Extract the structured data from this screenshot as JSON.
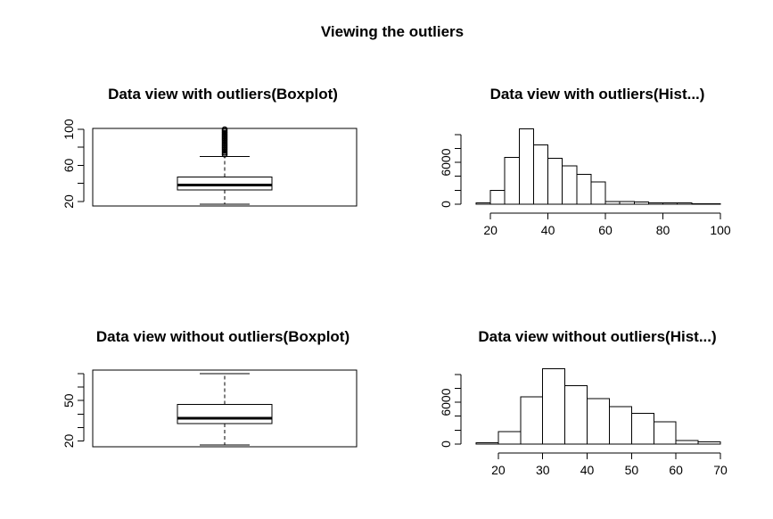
{
  "figure": {
    "title": "Viewing the outliers"
  },
  "chart_data": [
    {
      "type": "boxplot",
      "title": "Data view with outliers(Boxplot)",
      "orientation": "horizontal",
      "yaxis": {
        "range": [
          17,
          100
        ],
        "ticks": [
          20,
          60,
          100
        ],
        "minor_ticks": [
          40,
          80
        ]
      },
      "stats": {
        "whisker_low": 17,
        "q1": 33,
        "median": 38,
        "q3": 47,
        "whisker_high": 70
      },
      "outliers": [
        72,
        74,
        76,
        78,
        80,
        82,
        84,
        86,
        88,
        90,
        92,
        94,
        96,
        98,
        100
      ]
    },
    {
      "type": "histogram",
      "title": "Data view with outliers(Hist...)",
      "xaxis": {
        "range": [
          15,
          100
        ],
        "ticks": [
          20,
          40,
          60,
          80,
          100
        ]
      },
      "yaxis": {
        "range": [
          0,
          11000
        ],
        "ticks": [
          0,
          6000
        ],
        "minor_ticks": [
          2000,
          4000,
          8000,
          10000
        ]
      },
      "bins": [
        {
          "x0": 15,
          "x1": 20,
          "count": 200
        },
        {
          "x0": 20,
          "x1": 25,
          "count": 2000
        },
        {
          "x0": 25,
          "x1": 30,
          "count": 6700
        },
        {
          "x0": 30,
          "x1": 35,
          "count": 10800
        },
        {
          "x0": 35,
          "x1": 40,
          "count": 8500
        },
        {
          "x0": 40,
          "x1": 45,
          "count": 6600
        },
        {
          "x0": 45,
          "x1": 50,
          "count": 5500
        },
        {
          "x0": 50,
          "x1": 55,
          "count": 4300
        },
        {
          "x0": 55,
          "x1": 60,
          "count": 3200
        },
        {
          "x0": 60,
          "x1": 65,
          "count": 400
        },
        {
          "x0": 65,
          "x1": 70,
          "count": 400
        },
        {
          "x0": 70,
          "x1": 75,
          "count": 300
        },
        {
          "x0": 75,
          "x1": 80,
          "count": 200
        },
        {
          "x0": 80,
          "x1": 85,
          "count": 200
        },
        {
          "x0": 85,
          "x1": 90,
          "count": 200
        },
        {
          "x0": 90,
          "x1": 95,
          "count": 50
        },
        {
          "x0": 95,
          "x1": 100,
          "count": 50
        }
      ]
    },
    {
      "type": "boxplot",
      "title": "Data view without outliers(Boxplot)",
      "orientation": "horizontal",
      "yaxis": {
        "range": [
          17,
          72
        ],
        "ticks": [
          20,
          50
        ],
        "minor_ticks": [
          30,
          40,
          60,
          70
        ]
      },
      "stats": {
        "whisker_low": 17,
        "q1": 33,
        "median": 37,
        "q3": 47,
        "whisker_high": 70
      },
      "outliers": []
    },
    {
      "type": "histogram",
      "title": "Data view without outliers(Hist...)",
      "xaxis": {
        "range": [
          15,
          70
        ],
        "ticks": [
          20,
          30,
          40,
          50,
          60,
          70
        ]
      },
      "yaxis": {
        "range": [
          0,
          11000
        ],
        "ticks": [
          0,
          6000
        ],
        "minor_ticks": [
          2000,
          4000,
          8000,
          10000
        ]
      },
      "bins": [
        {
          "x0": 15,
          "x1": 20,
          "count": 200
        },
        {
          "x0": 20,
          "x1": 25,
          "count": 1800
        },
        {
          "x0": 25,
          "x1": 30,
          "count": 6800
        },
        {
          "x0": 30,
          "x1": 35,
          "count": 10800
        },
        {
          "x0": 35,
          "x1": 40,
          "count": 8400
        },
        {
          "x0": 40,
          "x1": 45,
          "count": 6500
        },
        {
          "x0": 45,
          "x1": 50,
          "count": 5400
        },
        {
          "x0": 50,
          "x1": 55,
          "count": 4400
        },
        {
          "x0": 55,
          "x1": 60,
          "count": 3200
        },
        {
          "x0": 60,
          "x1": 65,
          "count": 500
        },
        {
          "x0": 65,
          "x1": 70,
          "count": 300
        }
      ]
    }
  ]
}
